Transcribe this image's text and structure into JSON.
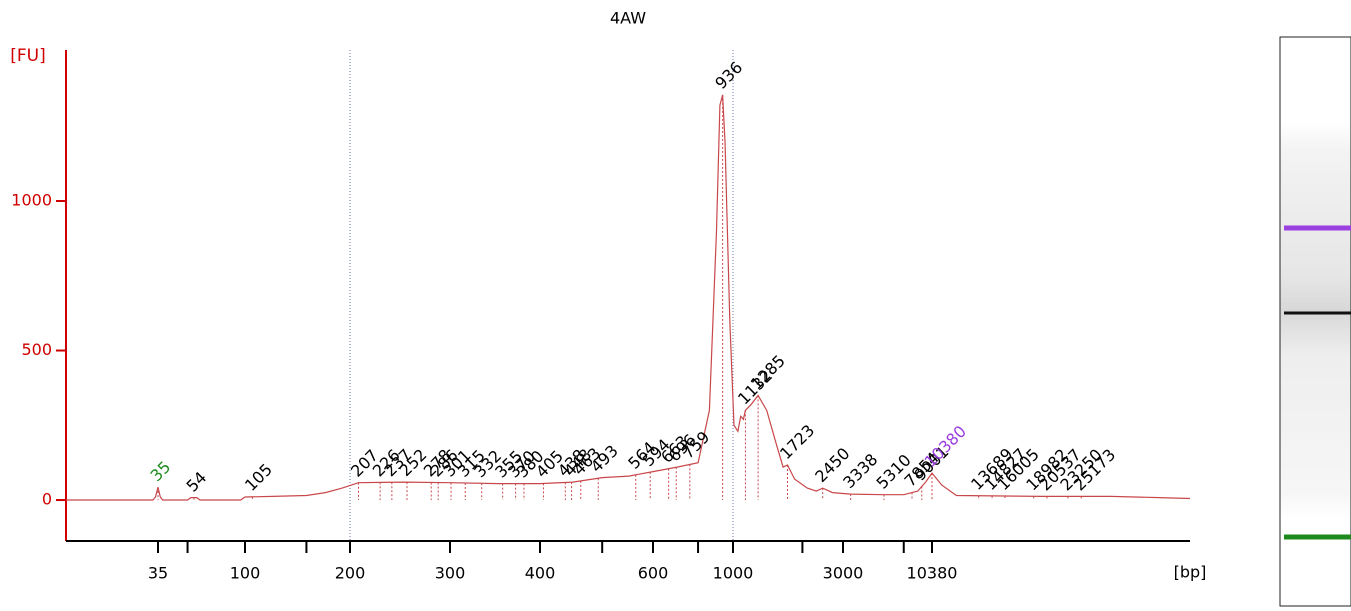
{
  "chart_data": {
    "type": "line",
    "title": "4AW",
    "y_label": "[FU]",
    "x_label": "[bp]",
    "log_x": true,
    "color": "#c8474a",
    "x": [
      12,
      33,
      34,
      35,
      36,
      37,
      50,
      52,
      56,
      58,
      95,
      100,
      120,
      150,
      170,
      190,
      207,
      250,
      300,
      350,
      400,
      450,
      500,
      550,
      600,
      700,
      800,
      860,
      900,
      920,
      936,
      950,
      980,
      1010,
      1050,
      1080,
      1110,
      1132,
      1200,
      1285,
      1400,
      1550,
      1650,
      1723,
      1850,
      2100,
      2300,
      2450,
      2700,
      3338,
      5310,
      7000,
      8500,
      9500,
      10380,
      11000,
      12000,
      20000,
      30000,
      40000,
      48000
    ],
    "values": [
      0,
      0,
      10,
      43,
      10,
      0,
      0,
      8,
      8,
      0,
      0,
      10,
      12,
      15,
      25,
      40,
      58,
      60,
      58,
      55,
      55,
      60,
      75,
      80,
      95,
      110,
      125,
      300,
      900,
      1320,
      1355,
      1200,
      600,
      250,
      230,
      280,
      270,
      300,
      320,
      350,
      300,
      180,
      110,
      117,
      70,
      40,
      30,
      40,
      25,
      20,
      18,
      18,
      30,
      60,
      90,
      50,
      15,
      12,
      12,
      8,
      5
    ],
    "xlim": [
      12,
      48000
    ],
    "ylim": [
      -137,
      1505
    ],
    "xticks": [
      35,
      100,
      200,
      300,
      400,
      600,
      1000,
      3000,
      10380
    ],
    "xminorticks": [
      50,
      150,
      500,
      800,
      2000,
      7000
    ],
    "yticks": [
      0,
      500,
      1000
    ],
    "reference_lines": [
      200,
      1000
    ],
    "markers": [
      {
        "size": 35,
        "color": "#1e8a1e"
      },
      {
        "size": 10380,
        "color": "#9b3fe0"
      }
    ],
    "peaks": [
      54,
      105,
      207,
      226,
      237,
      252,
      278,
      286,
      301,
      315,
      332,
      355,
      370,
      380,
      405,
      438,
      448,
      463,
      493,
      564,
      594,
      663,
      696,
      759,
      936,
      1132,
      1285,
      1723,
      2450,
      3338,
      5310,
      7854,
      9001,
      13689,
      14827,
      16005,
      18982,
      20537,
      23250,
      25173
    ],
    "gel_band_color": "#111111"
  }
}
